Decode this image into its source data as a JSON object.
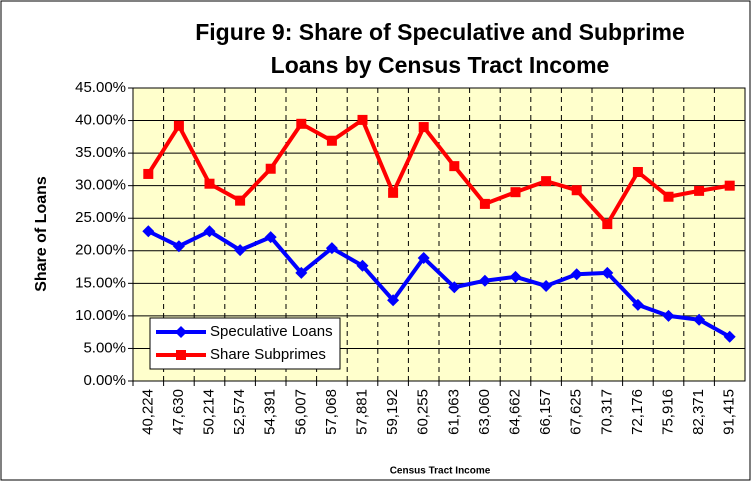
{
  "chart_data": {
    "type": "line",
    "title": [
      "Figure 9: Share of Speculative and Subprime",
      "Loans by Census Tract Income"
    ],
    "x_label": "Census Tract Income",
    "y_label": "Share of Loans",
    "categories": [
      "40,224",
      "47,630",
      "50,214",
      "52,574",
      "54,391",
      "56,007",
      "57,068",
      "57,881",
      "59,192",
      "60,255",
      "61,063",
      "63,060",
      "64,662",
      "66,157",
      "67,625",
      "70,317",
      "72,176",
      "75,916",
      "82,371",
      "91,415"
    ],
    "series": [
      {
        "name": "Speculative Loans",
        "color": "#0000ff",
        "marker": "diamond",
        "values": [
          23.0,
          20.7,
          23.0,
          20.1,
          22.1,
          16.6,
          20.4,
          17.7,
          12.4,
          18.9,
          14.4,
          15.4,
          16.0,
          14.6,
          16.4,
          16.6,
          11.7,
          10.0,
          9.4,
          6.8
        ]
      },
      {
        "name": "Share Subprimes",
        "color": "#ff0000",
        "marker": "square",
        "values": [
          31.8,
          39.2,
          30.3,
          27.7,
          32.6,
          39.5,
          36.9,
          40.1,
          28.9,
          39.0,
          33.0,
          27.2,
          29.0,
          30.7,
          29.3,
          24.1,
          32.1,
          28.3,
          29.2,
          30.0
        ]
      }
    ],
    "ylim": [
      0,
      45
    ],
    "yticks": [
      {
        "value": 0,
        "label": "0.00%"
      },
      {
        "value": 5,
        "label": "5.00%"
      },
      {
        "value": 10,
        "label": "10.00%"
      },
      {
        "value": 15,
        "label": "15.00%"
      },
      {
        "value": 20,
        "label": "20.00%"
      },
      {
        "value": 25,
        "label": "25.00%"
      },
      {
        "value": 30,
        "label": "30.00%"
      },
      {
        "value": 35,
        "label": "35.00%"
      },
      {
        "value": 40,
        "label": "40.00%"
      },
      {
        "value": 45,
        "label": "45.00%"
      }
    ],
    "grid": true,
    "legend": "lower left",
    "plot_background": "#ffffcc"
  }
}
